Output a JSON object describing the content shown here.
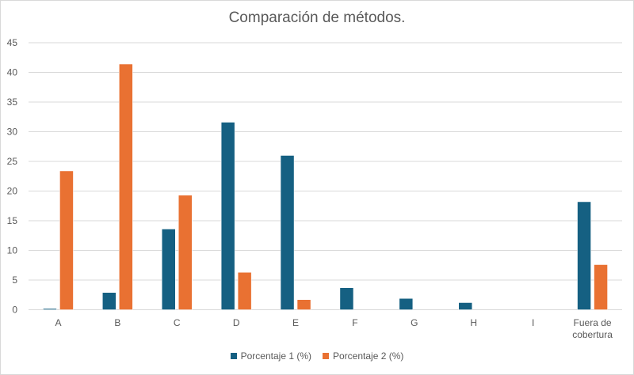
{
  "chart_data": {
    "type": "bar",
    "title": "Comparación de métodos.",
    "xlabel": "",
    "ylabel": "",
    "categories": [
      "A",
      "B",
      "C",
      "D",
      "E",
      "F",
      "G",
      "H",
      "I",
      "Fuera de cobertura"
    ],
    "series": [
      {
        "name": "Porcentaje 1 (%)",
        "color": "#156082",
        "values": [
          0.2,
          2.9,
          13.6,
          31.6,
          26.0,
          3.7,
          1.9,
          1.2,
          0,
          18.2
        ]
      },
      {
        "name": "Porcentaje 2 (%)",
        "color": "#E97132",
        "values": [
          23.4,
          41.4,
          19.3,
          6.3,
          1.7,
          0,
          0,
          0,
          0,
          7.6
        ]
      }
    ],
    "ylim": [
      0,
      45
    ],
    "yticks": [
      0,
      5,
      10,
      15,
      20,
      25,
      30,
      35,
      40,
      45
    ],
    "grid": true,
    "legend_position": "bottom"
  }
}
